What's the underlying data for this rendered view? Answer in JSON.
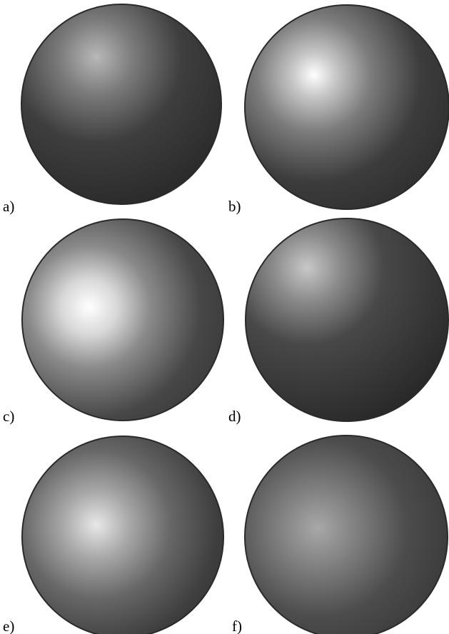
{
  "panels": [
    {
      "label": "a)"
    },
    {
      "label": "b)"
    },
    {
      "label": "c)"
    },
    {
      "label": "d)"
    },
    {
      "label": "e)"
    },
    {
      "label": "f)"
    }
  ]
}
